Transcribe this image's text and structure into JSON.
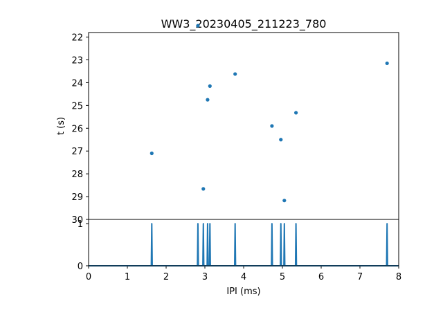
{
  "chart_data": [
    {
      "type": "scatter",
      "title": "WW3_20230405_211223_780",
      "ylabel": "t (s)",
      "xlim": [
        0,
        8
      ],
      "ylim": [
        30,
        21.8
      ],
      "y_inverted": true,
      "yticks": [
        22,
        23,
        24,
        25,
        26,
        27,
        28,
        29,
        30
      ],
      "color": "#1f77b4",
      "points": [
        {
          "x": 2.82,
          "y": 21.5
        },
        {
          "x": 7.7,
          "y": 23.15
        },
        {
          "x": 3.78,
          "y": 23.62
        },
        {
          "x": 3.13,
          "y": 24.15
        },
        {
          "x": 3.07,
          "y": 24.75
        },
        {
          "x": 5.35,
          "y": 25.32
        },
        {
          "x": 4.73,
          "y": 25.9
        },
        {
          "x": 4.96,
          "y": 26.5
        },
        {
          "x": 1.63,
          "y": 27.1
        },
        {
          "x": 2.96,
          "y": 28.66
        },
        {
          "x": 5.05,
          "y": 29.17
        }
      ]
    },
    {
      "type": "line",
      "xlabel": "IPI (ms)",
      "xlim": [
        0,
        8
      ],
      "ylim": [
        0,
        1.1
      ],
      "xticks": [
        0,
        1,
        2,
        3,
        4,
        5,
        6,
        7,
        8
      ],
      "yticks": [
        0,
        1
      ],
      "color": "#1f77b4",
      "spikes": [
        1.63,
        2.82,
        2.96,
        3.07,
        3.13,
        3.78,
        4.73,
        4.96,
        5.05,
        5.35,
        7.7
      ]
    }
  ]
}
